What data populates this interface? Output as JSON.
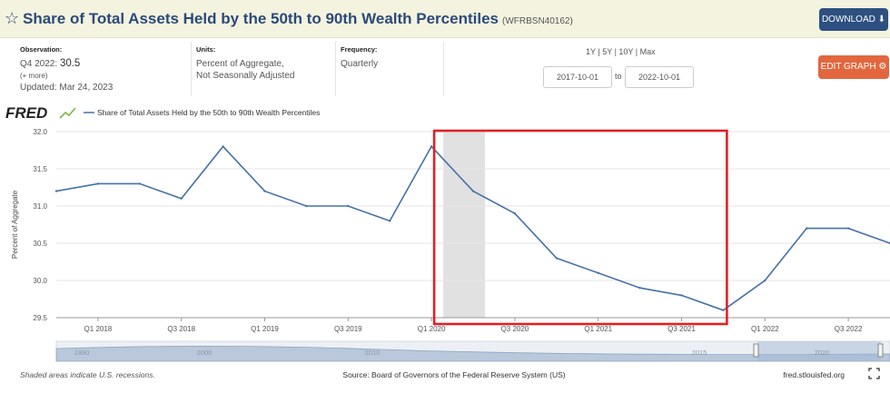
{
  "header": {
    "title": "Share of Total Assets Held by the 50th to 90th Wealth Percentiles",
    "series_id": "(WFRBSN40162)",
    "download_label": "DOWNLOAD"
  },
  "info": {
    "observation_label": "Observation:",
    "observation_period": "Q4 2022:",
    "observation_value": "30.5",
    "more_link": "(+ more)",
    "updated": "Updated: Mar 24, 2023",
    "units_label": "Units:",
    "units_line1": "Percent of Aggregate,",
    "units_line2": "Not Seasonally Adjusted",
    "frequency_label": "Frequency:",
    "frequency_value": "Quarterly",
    "range_links": [
      "1Y",
      "5Y",
      "10Y",
      "Max"
    ],
    "start_date": "2017-10-01",
    "to_label": "to",
    "end_date": "2022-10-01",
    "edit_label": "EDIT GRAPH"
  },
  "footer": {
    "recession_note": "Shaded areas indicate U.S. recessions.",
    "source": "Source: Board of Governors of the Federal Reserve System (US)",
    "site": "fred.stlouisfed.org"
  },
  "colors": {
    "line": "#4572a7",
    "recession": "#e1e1e1",
    "annotation_box": "#e02024",
    "brand_blue": "#2d5080",
    "edit_orange": "#e2673e"
  },
  "chart_data": {
    "type": "line",
    "brand": "FRED",
    "legend_label": "Share of Total Assets Held by the 50th to 90th Wealth Percentiles",
    "ylabel": "Percent of Aggregate",
    "ylim": [
      29.5,
      32.0
    ],
    "yticks": [
      "32.0",
      "31.5",
      "31.0",
      "30.5",
      "30.0",
      "29.5"
    ],
    "xtick_labels": [
      "Q1 2018",
      "Q3 2018",
      "Q1 2019",
      "Q3 2019",
      "Q1 2020",
      "Q3 2020",
      "Q1 2021",
      "Q3 2021",
      "Q1 2022",
      "Q3 2022"
    ],
    "x": [
      "Q4 2017",
      "Q1 2018",
      "Q2 2018",
      "Q3 2018",
      "Q4 2018",
      "Q1 2019",
      "Q2 2019",
      "Q3 2019",
      "Q4 2019",
      "Q1 2020",
      "Q2 2020",
      "Q3 2020",
      "Q4 2020",
      "Q1 2021",
      "Q2 2021",
      "Q3 2021",
      "Q4 2021",
      "Q1 2022",
      "Q2 2022",
      "Q3 2022",
      "Q4 2022"
    ],
    "values": [
      31.2,
      31.3,
      31.3,
      31.1,
      31.8,
      31.2,
      31.0,
      31.0,
      30.8,
      31.8,
      31.2,
      30.9,
      30.3,
      30.1,
      29.9,
      29.8,
      29.6,
      30.0,
      30.7,
      30.7,
      30.5
    ],
    "recession": {
      "start": "Q1 2020",
      "end": "Q2 2020"
    },
    "annotation_box": {
      "start": "Q1 2020",
      "end": "Q4 2021"
    },
    "grid": "horizontal",
    "navigator_years": [
      "1990",
      "2000",
      "2010",
      "2015",
      "2020"
    ]
  }
}
